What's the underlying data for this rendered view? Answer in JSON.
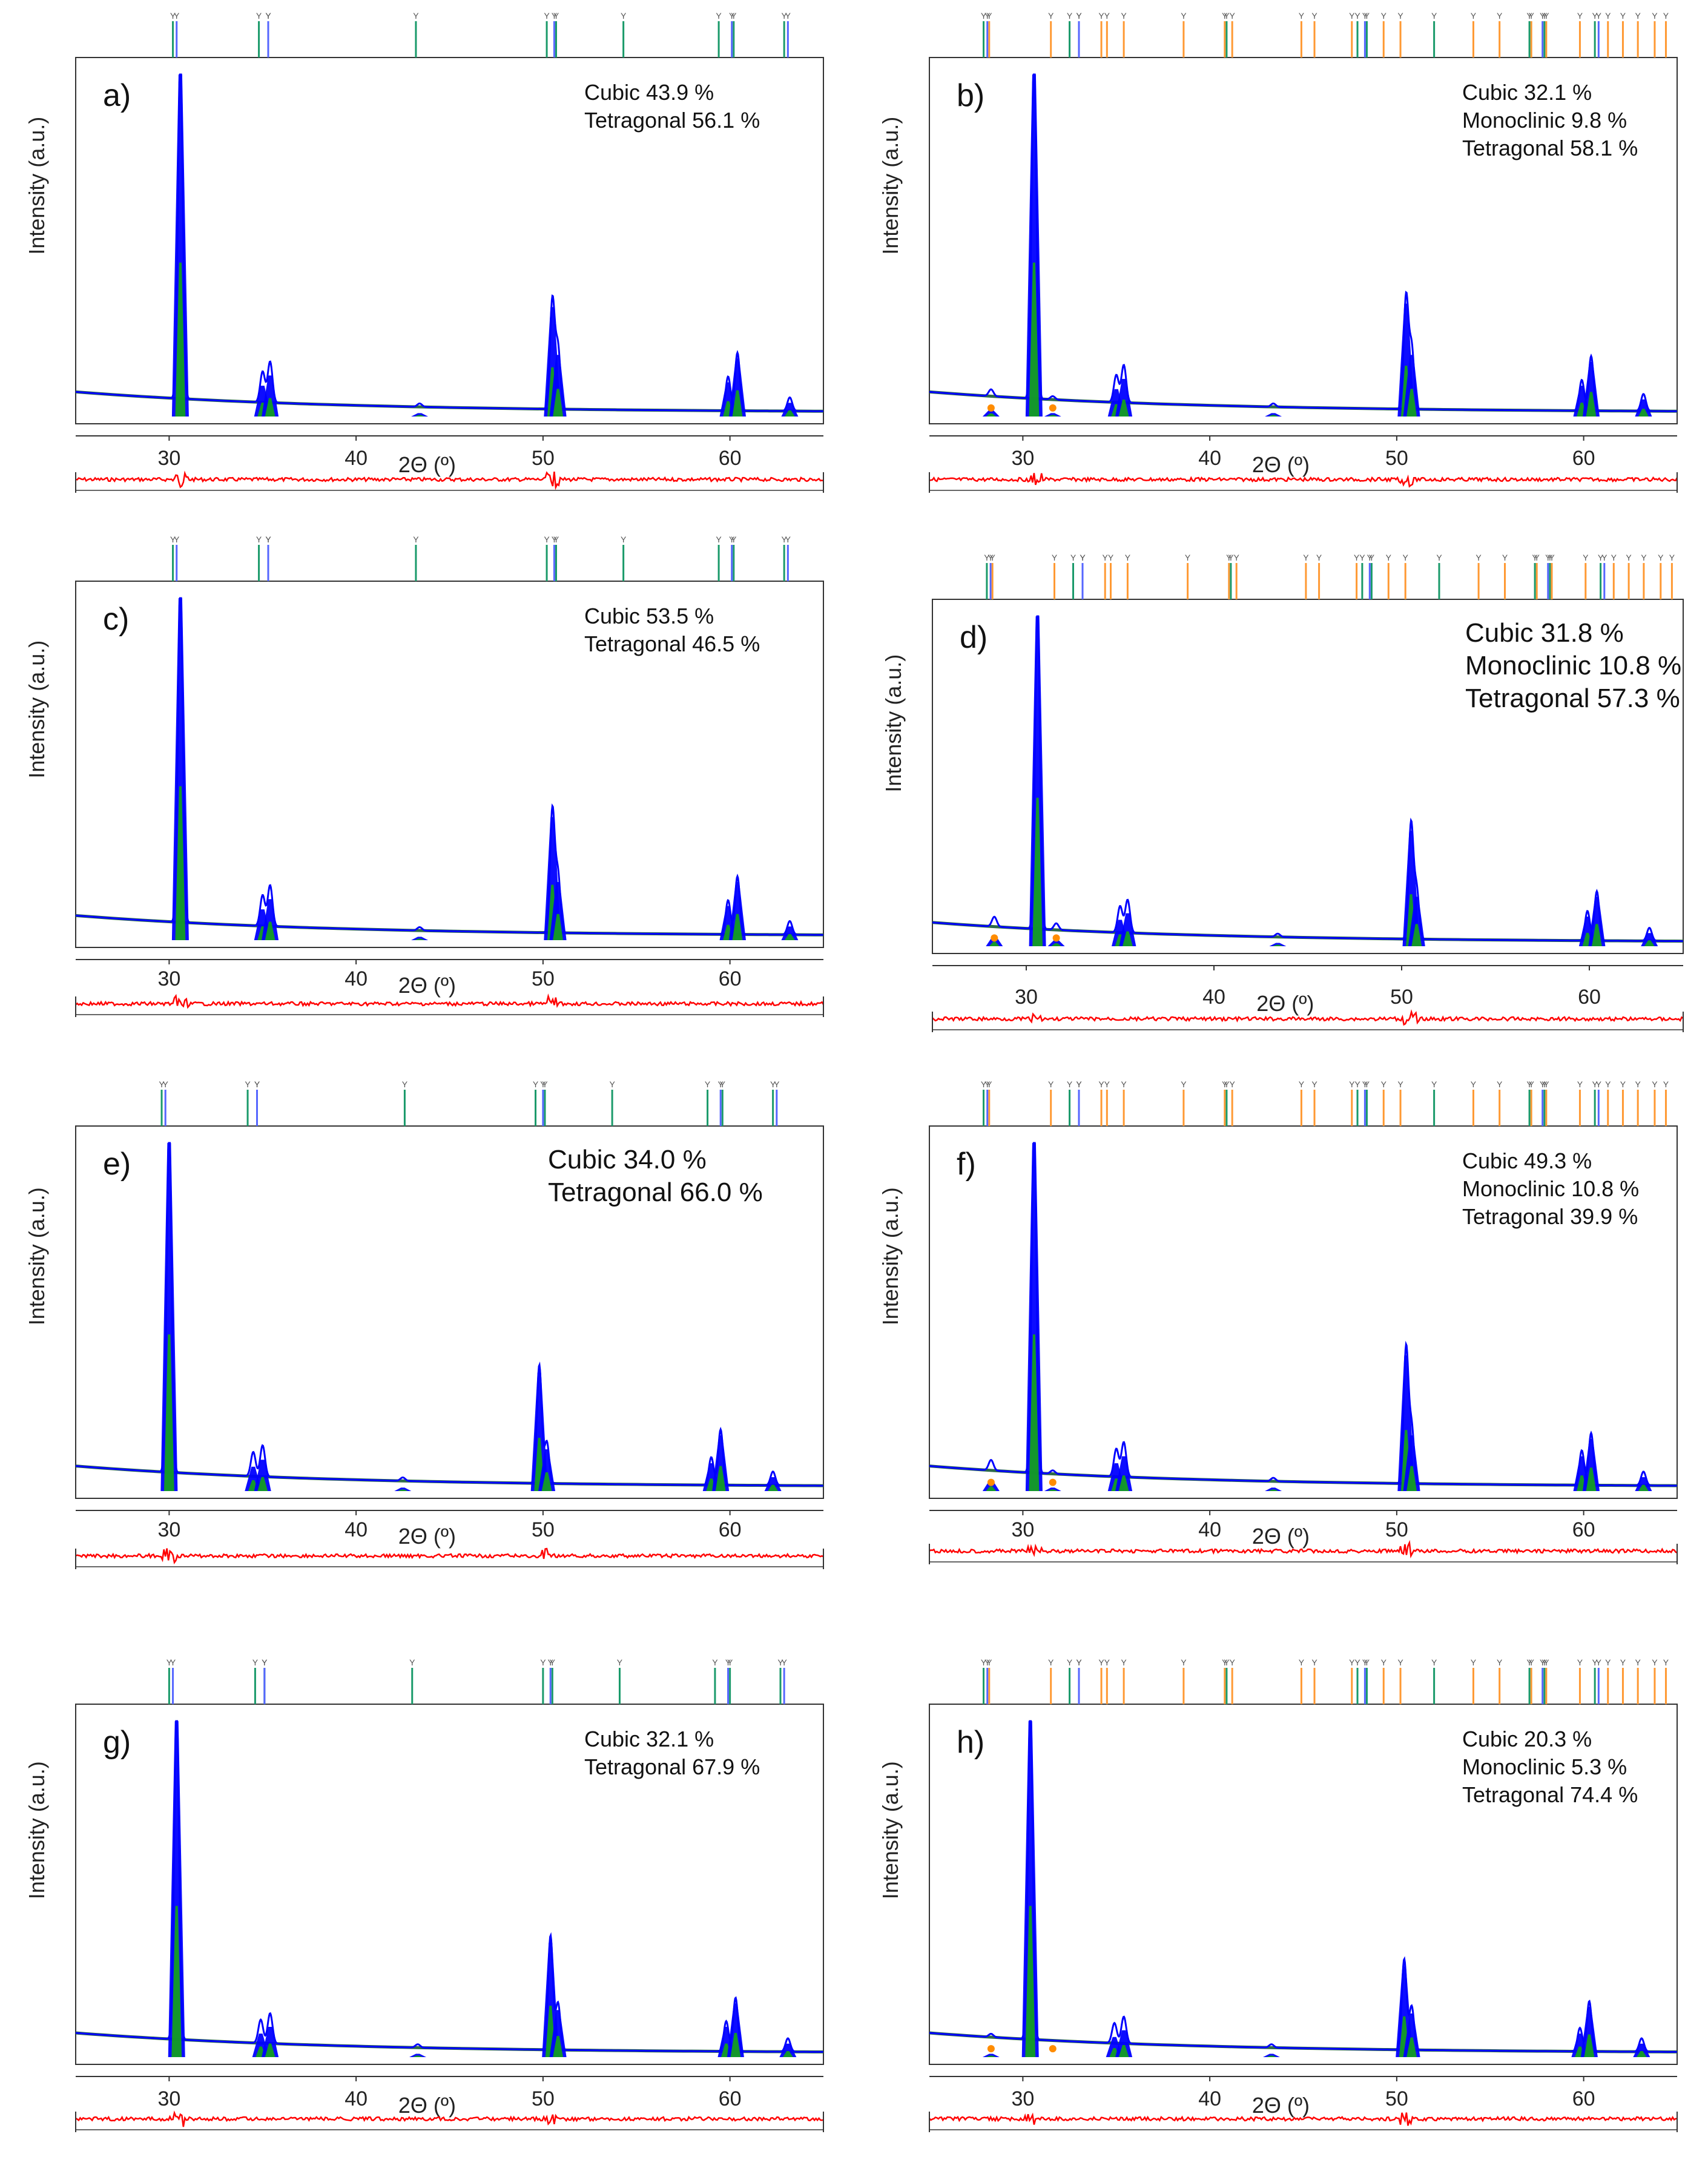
{
  "colors": {
    "observed": "#0000ff",
    "calc": "#1a2f8f",
    "background": "#2e6b4a",
    "tetragonal": "#15a615",
    "cubic": "#1010ff",
    "monoclinic": "#ff8c00",
    "difference": "#ff0000",
    "tick_cubic": "#5566ff",
    "tick_tetra": "#1a9a6a",
    "tick_mono": "#ff9933",
    "axis": "#333333"
  },
  "common": {
    "xlabel": "2Θ (º)",
    "ylabel": "Intensity (a.u.)",
    "xticks": [
      30,
      40,
      50,
      60
    ],
    "xlim": [
      25,
      65
    ]
  },
  "chart_data": [
    {
      "type": "line",
      "panel": "a)",
      "phase_lines": [
        "Cubic 43.9 %",
        "Tetragonal 56.1 %"
      ],
      "has_monoclinic": false,
      "xlabel": "2Θ (º)",
      "ylabel": "Intensity (a.u.)",
      "xlim": [
        25,
        65
      ],
      "peaks": [
        {
          "x": 30.6,
          "y": 100
        },
        {
          "x": 35.0,
          "y": 9
        },
        {
          "x": 35.4,
          "y": 12
        },
        {
          "x": 43.4,
          "y": 1
        },
        {
          "x": 50.5,
          "y": 32
        },
        {
          "x": 50.8,
          "y": 18
        },
        {
          "x": 59.9,
          "y": 10
        },
        {
          "x": 60.4,
          "y": 17
        },
        {
          "x": 63.2,
          "y": 4
        }
      ]
    },
    {
      "type": "line",
      "panel": "b)",
      "phase_lines": [
        "Cubic 32.1 %",
        "Monoclinic 9.8 %",
        "Tetragonal 58.1 %"
      ],
      "has_monoclinic": true,
      "xlabel": "2Θ (º)",
      "ylabel": "Intensity (a.u.)",
      "xlim": [
        25,
        65
      ],
      "peaks": [
        {
          "x": 28.3,
          "y": 2
        },
        {
          "x": 30.6,
          "y": 100
        },
        {
          "x": 31.6,
          "y": 1
        },
        {
          "x": 35.0,
          "y": 8
        },
        {
          "x": 35.4,
          "y": 11
        },
        {
          "x": 43.4,
          "y": 1
        },
        {
          "x": 50.5,
          "y": 33
        },
        {
          "x": 50.8,
          "y": 18
        },
        {
          "x": 59.9,
          "y": 9
        },
        {
          "x": 60.4,
          "y": 16
        },
        {
          "x": 63.2,
          "y": 5
        }
      ]
    },
    {
      "type": "line",
      "panel": "c)",
      "phase_lines": [
        "Cubic 53.5 %",
        "Tetragonal 46.5 %"
      ],
      "has_monoclinic": false,
      "xlabel": "2Θ (º)",
      "ylabel": "Intensity (a.u.)",
      "xlim": [
        25,
        65
      ],
      "peaks": [
        {
          "x": 30.6,
          "y": 100
        },
        {
          "x": 35.0,
          "y": 9
        },
        {
          "x": 35.4,
          "y": 12
        },
        {
          "x": 43.4,
          "y": 1
        },
        {
          "x": 50.5,
          "y": 36
        },
        {
          "x": 50.8,
          "y": 17
        },
        {
          "x": 59.9,
          "y": 10
        },
        {
          "x": 60.4,
          "y": 17
        },
        {
          "x": 63.2,
          "y": 4
        }
      ]
    },
    {
      "type": "line",
      "panel": "d)",
      "phase_lines": [
        "Cubic 31.8 %",
        "Monoclinic 10.8 %",
        "Tetragonal 57.3 %"
      ],
      "has_monoclinic": true,
      "xlabel": "2Θ (º)",
      "ylabel": "Intensity (a.u.)",
      "xlim": [
        25,
        65
      ],
      "peaks": [
        {
          "x": 28.3,
          "y": 3
        },
        {
          "x": 30.6,
          "y": 100
        },
        {
          "x": 31.6,
          "y": 2
        },
        {
          "x": 35.0,
          "y": 8
        },
        {
          "x": 35.4,
          "y": 10
        },
        {
          "x": 43.4,
          "y": 1
        },
        {
          "x": 50.5,
          "y": 35
        },
        {
          "x": 50.8,
          "y": 15
        },
        {
          "x": 59.9,
          "y": 9
        },
        {
          "x": 60.4,
          "y": 15
        },
        {
          "x": 63.2,
          "y": 4
        }
      ]
    },
    {
      "type": "line",
      "panel": "e)",
      "phase_lines": [
        "Cubic 34.0 %",
        "Tetragonal 66.0 %"
      ],
      "has_monoclinic": false,
      "large_label": true,
      "xlabel": "2Θ (º)",
      "ylabel": "Intensity (a.u.)",
      "xlim": [
        25,
        65
      ],
      "peaks": [
        {
          "x": 30.0,
          "y": 100
        },
        {
          "x": 34.5,
          "y": 7
        },
        {
          "x": 35.0,
          "y": 9
        },
        {
          "x": 42.5,
          "y": 1
        },
        {
          "x": 49.8,
          "y": 34
        },
        {
          "x": 50.2,
          "y": 12
        },
        {
          "x": 59.0,
          "y": 8
        },
        {
          "x": 59.5,
          "y": 16
        },
        {
          "x": 62.3,
          "y": 4
        }
      ]
    },
    {
      "type": "line",
      "panel": "f)",
      "phase_lines": [
        "Cubic 49.3 %",
        "Monoclinic 10.8 %",
        "Tetragonal 39.9 %"
      ],
      "has_monoclinic": true,
      "xlabel": "2Θ (º)",
      "ylabel": "Intensity (a.u.)",
      "xlim": [
        25,
        65
      ],
      "peaks": [
        {
          "x": 28.3,
          "y": 3
        },
        {
          "x": 30.6,
          "y": 100
        },
        {
          "x": 31.6,
          "y": 1
        },
        {
          "x": 35.0,
          "y": 8
        },
        {
          "x": 35.4,
          "y": 10
        },
        {
          "x": 43.4,
          "y": 1
        },
        {
          "x": 50.5,
          "y": 39
        },
        {
          "x": 50.8,
          "y": 16
        },
        {
          "x": 59.9,
          "y": 10
        },
        {
          "x": 60.4,
          "y": 15
        },
        {
          "x": 63.2,
          "y": 4
        }
      ]
    },
    {
      "type": "line",
      "panel": "g)",
      "phase_lines": [
        "Cubic 32.1 %",
        "Tetragonal 67.9 %"
      ],
      "has_monoclinic": false,
      "xlabel": "2Θ (º)",
      "ylabel": "Intensity (a.u.)",
      "xlim": [
        25,
        65
      ],
      "peaks": [
        {
          "x": 30.4,
          "y": 100
        },
        {
          "x": 34.9,
          "y": 7
        },
        {
          "x": 35.4,
          "y": 9
        },
        {
          "x": 43.3,
          "y": 1
        },
        {
          "x": 50.4,
          "y": 34
        },
        {
          "x": 50.8,
          "y": 14
        },
        {
          "x": 59.8,
          "y": 9
        },
        {
          "x": 60.3,
          "y": 16
        },
        {
          "x": 63.1,
          "y": 4
        }
      ]
    },
    {
      "type": "line",
      "panel": "h)",
      "phase_lines": [
        "Cubic 20.3 %",
        "Monoclinic 5.3 %",
        "Tetragonal 74.4 %"
      ],
      "has_monoclinic": true,
      "xlabel": "2Θ (º)",
      "ylabel": "Intensity (a.u.)",
      "xlim": [
        25,
        65
      ],
      "peaks": [
        {
          "x": 28.3,
          "y": 1
        },
        {
          "x": 30.4,
          "y": 100
        },
        {
          "x": 34.9,
          "y": 6
        },
        {
          "x": 35.4,
          "y": 8
        },
        {
          "x": 43.3,
          "y": 1
        },
        {
          "x": 50.4,
          "y": 27
        },
        {
          "x": 50.8,
          "y": 13
        },
        {
          "x": 59.8,
          "y": 7
        },
        {
          "x": 60.3,
          "y": 15
        },
        {
          "x": 63.1,
          "y": 4
        }
      ]
    }
  ]
}
